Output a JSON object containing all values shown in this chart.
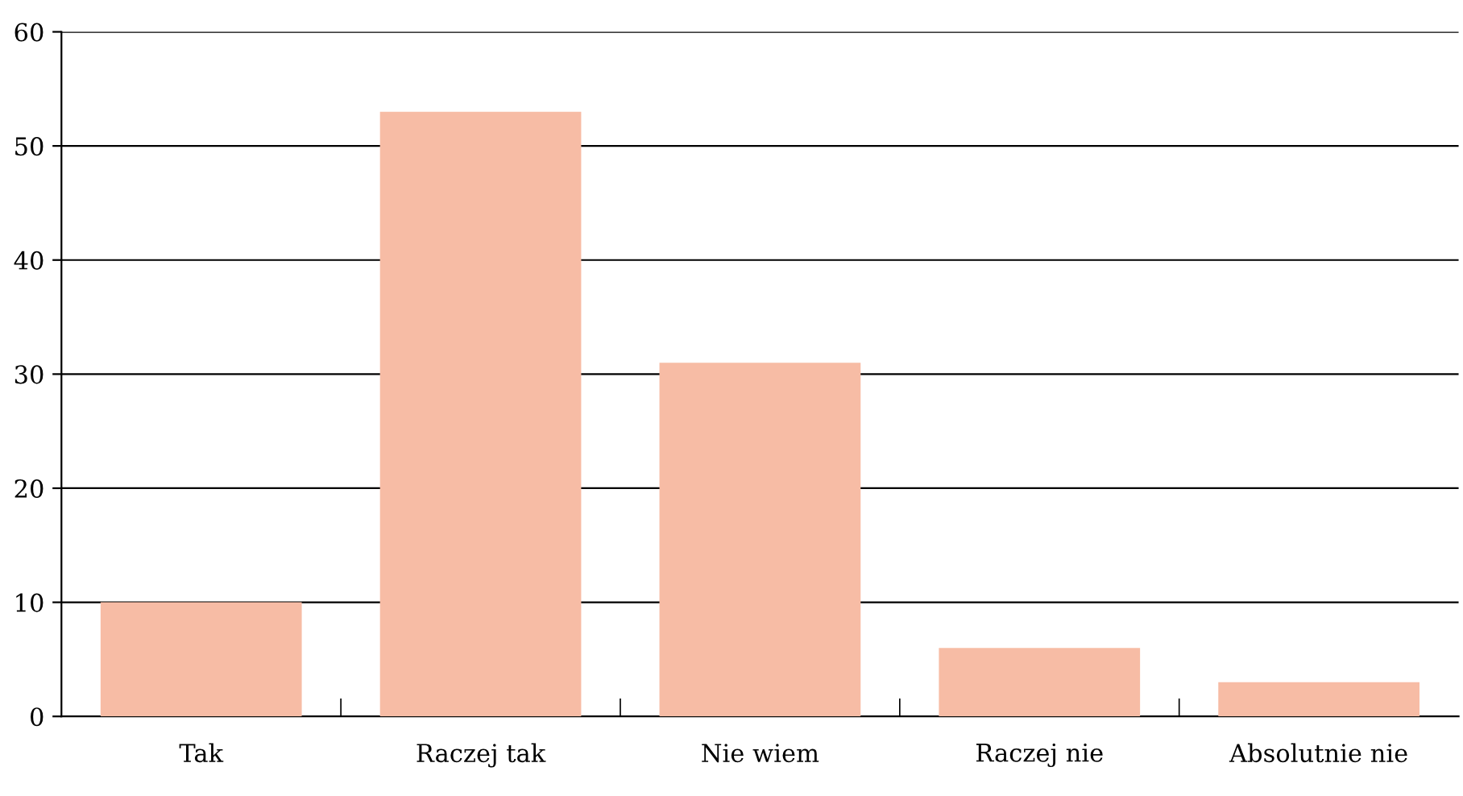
{
  "chart_data": {
    "type": "bar",
    "categories": [
      "Tak",
      "Raczej tak",
      "Nie wiem",
      "Raczej nie",
      "Absolutnie nie"
    ],
    "values": [
      10,
      53,
      31,
      6,
      3
    ],
    "color": "#f7bca5",
    "ylim": [
      0,
      60
    ],
    "yticks": [
      0,
      10,
      20,
      30,
      40,
      50,
      60
    ],
    "grid": "y",
    "legend": false
  }
}
